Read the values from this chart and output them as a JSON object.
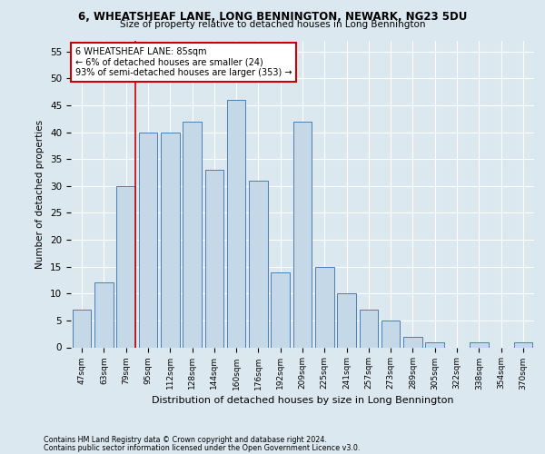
{
  "title1": "6, WHEATSHEAF LANE, LONG BENNINGTON, NEWARK, NG23 5DU",
  "title2": "Size of property relative to detached houses in Long Bennington",
  "xlabel": "Distribution of detached houses by size in Long Bennington",
  "ylabel": "Number of detached properties",
  "footnote1": "Contains HM Land Registry data © Crown copyright and database right 2024.",
  "footnote2": "Contains public sector information licensed under the Open Government Licence v3.0.",
  "categories": [
    "47sqm",
    "63sqm",
    "79sqm",
    "95sqm",
    "112sqm",
    "128sqm",
    "144sqm",
    "160sqm",
    "176sqm",
    "192sqm",
    "209sqm",
    "225sqm",
    "241sqm",
    "257sqm",
    "273sqm",
    "289sqm",
    "305sqm",
    "322sqm",
    "338sqm",
    "354sqm",
    "370sqm"
  ],
  "values": [
    7,
    12,
    30,
    40,
    40,
    42,
    33,
    46,
    31,
    14,
    42,
    15,
    10,
    7,
    5,
    2,
    1,
    0,
    1,
    0,
    1
  ],
  "bar_color": "#c5d8e8",
  "bar_edge_color": "#4a7fb5",
  "property_line_bin": 2,
  "annotation_title": "6 WHEATSHEAF LANE: 85sqm",
  "annotation_line1": "← 6% of detached houses are smaller (24)",
  "annotation_line2": "93% of semi-detached houses are larger (353) →",
  "annotation_box_color": "#ffffff",
  "annotation_box_edge_color": "#cc0000",
  "ylim": [
    0,
    57
  ],
  "bg_color": "#dce8f0"
}
